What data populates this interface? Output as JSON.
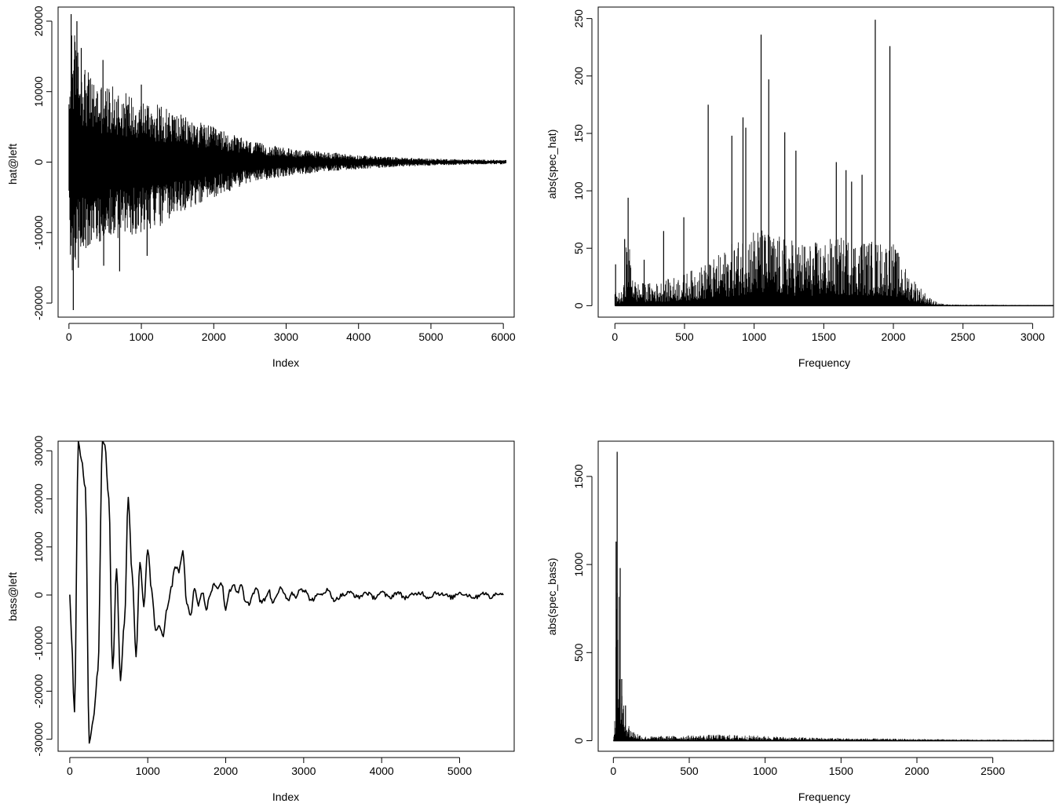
{
  "figure": {
    "background": "#ffffff",
    "ink": "#000000"
  },
  "chart_data": [
    {
      "id": "hat-wave",
      "type": "line",
      "title": "",
      "xlabel": "Index",
      "ylabel": "hat@left",
      "xlim": [
        -150,
        6150
      ],
      "ylim": [
        -22000,
        22000
      ],
      "xticks": [
        0,
        1000,
        2000,
        3000,
        4000,
        5000,
        6000
      ],
      "xtick_labels": [
        "0",
        "1000",
        "2000",
        "3000",
        "4000",
        "5000",
        "6000"
      ],
      "yticks": [
        -20000,
        -10000,
        0,
        10000,
        20000
      ],
      "ytick_labels": [
        "-20000",
        "-10000",
        "0",
        "10000",
        "20000"
      ],
      "envelope": {
        "x": [
          0,
          40,
          100,
          200,
          300,
          500,
          700,
          1000,
          1300,
          1600,
          2000,
          2500,
          3000,
          3500,
          4000,
          4500,
          5000,
          5500,
          6040
        ],
        "upper": [
          8500,
          21000,
          17000,
          14500,
          12000,
          11000,
          10500,
          9000,
          8000,
          6500,
          5000,
          3000,
          2000,
          1500,
          1000,
          700,
          500,
          400,
          300
        ],
        "lower": [
          -6000,
          -21000,
          -13000,
          -12500,
          -12000,
          -11000,
          -11000,
          -10000,
          -9000,
          -7000,
          -5000,
          -3000,
          -2000,
          -1400,
          -1000,
          -700,
          -500,
          -350,
          -300
        ]
      },
      "peaks": [
        {
          "x": 30,
          "y": 21000
        },
        {
          "x": 60,
          "y": -21000
        },
        {
          "x": 110,
          "y": 20000
        },
        {
          "x": 130,
          "y": -15000
        },
        {
          "x": 170,
          "y": 16200
        },
        {
          "x": 280,
          "y": 11700
        },
        {
          "x": 470,
          "y": 14500
        },
        {
          "x": 480,
          "y": -14700
        },
        {
          "x": 700,
          "y": -15500
        },
        {
          "x": 1000,
          "y": 11000
        },
        {
          "x": 1080,
          "y": -13300
        }
      ]
    },
    {
      "id": "hat-spectrum",
      "type": "line",
      "title": "",
      "xlabel": "Frequency",
      "ylabel": "abs(spec_hat)",
      "xlim": [
        -120,
        3150
      ],
      "ylim": [
        -10,
        260
      ],
      "xticks": [
        0,
        500,
        1000,
        1500,
        2000,
        2500,
        3000
      ],
      "xtick_labels": [
        "0",
        "500",
        "1000",
        "1500",
        "2000",
        "2500",
        "3000"
      ],
      "yticks": [
        0,
        50,
        100,
        150,
        200,
        250
      ],
      "ytick_labels": [
        "0",
        "50",
        "100",
        "150",
        "200",
        "250"
      ],
      "envelope": {
        "x": [
          0,
          60,
          80,
          100,
          150,
          300,
          500,
          700,
          850,
          1000,
          1200,
          1400,
          1600,
          1800,
          2000,
          2100,
          2160,
          2250,
          2330,
          2400,
          3150
        ],
        "upper": [
          12,
          12,
          55,
          55,
          20,
          20,
          28,
          40,
          55,
          70,
          60,
          55,
          60,
          58,
          55,
          30,
          22,
          8,
          2,
          1,
          0.5
        ]
      },
      "peaks": [
        {
          "x": 5,
          "y": 36
        },
        {
          "x": 70,
          "y": 58
        },
        {
          "x": 95,
          "y": 94
        },
        {
          "x": 210,
          "y": 40
        },
        {
          "x": 350,
          "y": 65
        },
        {
          "x": 495,
          "y": 77
        },
        {
          "x": 670,
          "y": 175
        },
        {
          "x": 840,
          "y": 148
        },
        {
          "x": 920,
          "y": 164
        },
        {
          "x": 940,
          "y": 155
        },
        {
          "x": 1050,
          "y": 236
        },
        {
          "x": 1105,
          "y": 197
        },
        {
          "x": 1220,
          "y": 151
        },
        {
          "x": 1300,
          "y": 135
        },
        {
          "x": 1590,
          "y": 125
        },
        {
          "x": 1660,
          "y": 118
        },
        {
          "x": 1700,
          "y": 108
        },
        {
          "x": 1775,
          "y": 114
        },
        {
          "x": 1870,
          "y": 249
        },
        {
          "x": 1975,
          "y": 226
        }
      ]
    },
    {
      "id": "bass-wave",
      "type": "line",
      "title": "",
      "xlabel": "Index",
      "ylabel": "bass@left",
      "xlim": [
        -150,
        5700
      ],
      "ylim": [
        -32500,
        32000
      ],
      "xticks": [
        0,
        1000,
        2000,
        3000,
        4000,
        5000
      ],
      "xtick_labels": [
        "0",
        "1000",
        "2000",
        "3000",
        "4000",
        "5000"
      ],
      "yticks": [
        -30000,
        -20000,
        -10000,
        0,
        10000,
        20000,
        30000
      ],
      "ytick_labels": [
        "-30000",
        "-20000",
        "-10000",
        "0",
        "10000",
        "20000",
        "30000"
      ],
      "x": [
        0,
        20,
        60,
        110,
        150,
        200,
        250,
        300,
        360,
        420,
        450,
        500,
        550,
        600,
        650,
        700,
        750,
        800,
        850,
        900,
        950,
        1000,
        1050,
        1100,
        1150,
        1200,
        1250,
        1300,
        1350,
        1400,
        1450,
        1500,
        1550,
        1600,
        1650,
        1700,
        1750,
        1800,
        1850,
        1900,
        1950,
        2000,
        2050,
        2100,
        2150,
        2200,
        2250,
        2300,
        2350,
        2400,
        2450,
        2500,
        2550,
        2600,
        2650,
        2700,
        2750,
        2800,
        2850,
        2900,
        2950,
        3000,
        3100,
        3200,
        3300,
        3400,
        3500,
        3600,
        3700,
        3800,
        3900,
        4000,
        4100,
        4200,
        4300,
        4400,
        4500,
        4600,
        4700,
        4800,
        4900,
        5000,
        5100,
        5200,
        5300,
        5400,
        5500,
        5560
      ],
      "y": [
        0,
        -8000,
        -24500,
        32000,
        28000,
        22000,
        -30500,
        -26000,
        -16000,
        32000,
        31000,
        20000,
        -15500,
        5000,
        -17500,
        -6000,
        20000,
        4000,
        -12500,
        7000,
        -2000,
        9500,
        1000,
        -7500,
        -6500,
        -8500,
        -2500,
        1500,
        6000,
        5000,
        9000,
        -1500,
        -4000,
        1500,
        -2000,
        500,
        -3000,
        0,
        2500,
        1500,
        2500,
        -3000,
        1000,
        2500,
        500,
        2500,
        -1000,
        -2000,
        500,
        1500,
        -1500,
        -1000,
        1000,
        -1500,
        0,
        1500,
        0,
        -1000,
        500,
        -500,
        1500,
        1000,
        -1000,
        0,
        1000,
        -1000,
        0,
        500,
        -500,
        500,
        -500,
        500,
        -500,
        500,
        -500,
        0,
        500,
        -500,
        500,
        0,
        -500,
        500,
        0,
        -500,
        500,
        -500,
        500,
        0
      ]
    },
    {
      "id": "bass-spectrum",
      "type": "line",
      "title": "",
      "xlabel": "Frequency",
      "ylabel": "abs(spec_bass)",
      "xlim": [
        -100,
        2900
      ],
      "ylim": [
        -60,
        1700
      ],
      "xticks": [
        0,
        500,
        1000,
        1500,
        2000,
        2500
      ],
      "xtick_labels": [
        "0",
        "500",
        "1000",
        "1500",
        "2000",
        "2500"
      ],
      "yticks": [
        0,
        500,
        1000,
        1500
      ],
      "ytick_labels": [
        "0",
        "500",
        "1000",
        "1500"
      ],
      "envelope": {
        "x": [
          0,
          10,
          20,
          30,
          40,
          50,
          60,
          80,
          100,
          130,
          200,
          400,
          700,
          900,
          1200,
          1500,
          2000,
          2400,
          2900
        ],
        "upper": [
          20,
          150,
          900,
          1100,
          700,
          400,
          250,
          150,
          100,
          60,
          25,
          28,
          35,
          30,
          20,
          15,
          10,
          6,
          4
        ]
      },
      "peaks": [
        {
          "x": 25,
          "y": 1640
        },
        {
          "x": 18,
          "y": 1130
        },
        {
          "x": 45,
          "y": 980
        },
        {
          "x": 55,
          "y": 350
        },
        {
          "x": 80,
          "y": 200
        }
      ]
    }
  ]
}
